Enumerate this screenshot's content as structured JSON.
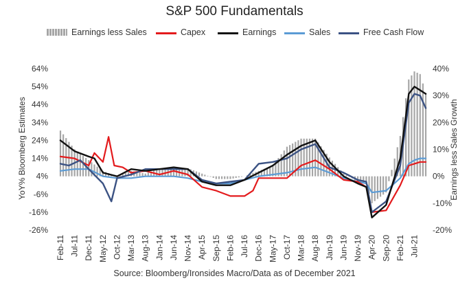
{
  "chart_data": {
    "type": "line",
    "title": "S&P 500 Fundamentals",
    "source": "Source: Bloomberg/Ironsides Macro/Data as of December 2021",
    "ylabel": "YoY% Bloomberg Estimates",
    "y2label": "Earnings less Sales Growth",
    "ylim": [
      -26,
      64
    ],
    "y2lim": [
      -20,
      40
    ],
    "yticks": [
      "64%",
      "54%",
      "44%",
      "34%",
      "24%",
      "14%",
      "4%",
      "-6%",
      "-16%",
      "-26%"
    ],
    "y2ticks": [
      "40%",
      "30%",
      "20%",
      "10%",
      "0%",
      "-10%",
      "-20%"
    ],
    "x_start": "2011-02",
    "x_end": "2021-11",
    "xticks": [
      "Feb-11",
      "Jul-11",
      "Dec-11",
      "May-12",
      "Oct-12",
      "Mar-13",
      "Aug-13",
      "Jan-14",
      "Jun-14",
      "Nov-14",
      "Apr-15",
      "Sep-15",
      "Feb-16",
      "Jul-16",
      "Dec-16",
      "May-17",
      "Oct-17",
      "Mar-18",
      "Aug-18",
      "Jan-19",
      "Jun-19",
      "Nov-19",
      "Apr-20",
      "Sep-20",
      "Feb-21",
      "Jul-21"
    ],
    "legend": [
      {
        "name": "Earnings less Sales",
        "color": "#a6a6a6",
        "kind": "bar"
      },
      {
        "name": "Capex",
        "color": "#e31a1c",
        "kind": "line"
      },
      {
        "name": "Earnings",
        "color": "#111111",
        "kind": "line"
      },
      {
        "name": "Sales",
        "color": "#5b9bd5",
        "kind": "line"
      },
      {
        "name": "Free Cash Flow",
        "color": "#3b5283",
        "kind": "line"
      }
    ],
    "bar_series": {
      "name": "Earnings less Sales",
      "axis": "right",
      "color": "#a6a6a6",
      "points": [
        [
          "2011-02",
          17
        ],
        [
          "2011-07",
          10
        ],
        [
          "2011-12",
          6
        ],
        [
          "2012-05",
          2
        ],
        [
          "2012-10",
          0
        ],
        [
          "2013-03",
          2
        ],
        [
          "2013-08",
          1
        ],
        [
          "2014-01",
          3
        ],
        [
          "2014-06",
          3
        ],
        [
          "2014-11",
          3
        ],
        [
          "2015-04",
          1
        ],
        [
          "2015-09",
          -1
        ],
        [
          "2016-02",
          -1
        ],
        [
          "2016-07",
          0
        ],
        [
          "2016-12",
          2
        ],
        [
          "2017-05",
          4
        ],
        [
          "2017-10",
          11
        ],
        [
          "2018-03",
          14
        ],
        [
          "2018-08",
          14
        ],
        [
          "2019-01",
          7
        ],
        [
          "2019-06",
          1
        ],
        [
          "2019-11",
          -2
        ],
        [
          "2020-02",
          -3
        ],
        [
          "2020-04",
          -10
        ],
        [
          "2020-09",
          -6
        ],
        [
          "2021-02",
          15
        ],
        [
          "2021-05",
          36
        ],
        [
          "2021-07",
          39
        ],
        [
          "2021-09",
          38
        ],
        [
          "2021-11",
          31
        ]
      ]
    },
    "series": [
      {
        "name": "Sales",
        "color": "#5b9bd5",
        "width": 2.2,
        "points": [
          [
            "2011-02",
            7
          ],
          [
            "2011-07",
            8
          ],
          [
            "2011-12",
            8
          ],
          [
            "2012-05",
            4
          ],
          [
            "2012-10",
            3
          ],
          [
            "2013-03",
            3
          ],
          [
            "2013-08",
            4
          ],
          [
            "2014-01",
            4
          ],
          [
            "2014-06",
            4
          ],
          [
            "2014-11",
            3
          ],
          [
            "2015-04",
            1
          ],
          [
            "2015-09",
            0
          ],
          [
            "2016-02",
            0
          ],
          [
            "2016-07",
            2
          ],
          [
            "2016-12",
            4
          ],
          [
            "2017-05",
            5
          ],
          [
            "2017-10",
            6
          ],
          [
            "2018-03",
            8
          ],
          [
            "2018-08",
            9
          ],
          [
            "2019-01",
            6
          ],
          [
            "2019-06",
            3
          ],
          [
            "2019-11",
            1
          ],
          [
            "2020-02",
            0
          ],
          [
            "2020-04",
            -5
          ],
          [
            "2020-09",
            -4
          ],
          [
            "2021-02",
            3
          ],
          [
            "2021-05",
            11
          ],
          [
            "2021-07",
            13
          ],
          [
            "2021-09",
            14
          ],
          [
            "2021-11",
            14
          ]
        ]
      },
      {
        "name": "Capex",
        "color": "#e31a1c",
        "width": 2.2,
        "points": [
          [
            "2011-02",
            15
          ],
          [
            "2011-07",
            14
          ],
          [
            "2011-12",
            10
          ],
          [
            "2012-02",
            17
          ],
          [
            "2012-05",
            12
          ],
          [
            "2012-07",
            26
          ],
          [
            "2012-09",
            10
          ],
          [
            "2012-12",
            9
          ],
          [
            "2013-03",
            6
          ],
          [
            "2013-08",
            7
          ],
          [
            "2014-01",
            5
          ],
          [
            "2014-06",
            7
          ],
          [
            "2014-11",
            5
          ],
          [
            "2015-04",
            -2
          ],
          [
            "2015-09",
            -4
          ],
          [
            "2016-02",
            -7
          ],
          [
            "2016-07",
            -7
          ],
          [
            "2016-10",
            -4
          ],
          [
            "2016-12",
            3
          ],
          [
            "2017-05",
            3
          ],
          [
            "2017-10",
            3
          ],
          [
            "2018-03",
            10
          ],
          [
            "2018-08",
            13
          ],
          [
            "2019-01",
            8
          ],
          [
            "2019-06",
            2
          ],
          [
            "2019-11",
            1
          ],
          [
            "2020-02",
            -2
          ],
          [
            "2020-04",
            -16
          ],
          [
            "2020-09",
            -15
          ],
          [
            "2021-02",
            -1
          ],
          [
            "2021-05",
            10
          ],
          [
            "2021-07",
            11
          ],
          [
            "2021-09",
            12
          ],
          [
            "2021-11",
            12
          ]
        ]
      },
      {
        "name": "Free Cash Flow",
        "color": "#3b5283",
        "width": 2.4,
        "points": [
          [
            "2011-02",
            11
          ],
          [
            "2011-05",
            10
          ],
          [
            "2011-09",
            13
          ],
          [
            "2011-12",
            8
          ],
          [
            "2012-05",
            0
          ],
          [
            "2012-08",
            -10
          ],
          [
            "2012-10",
            3
          ],
          [
            "2013-03",
            5
          ],
          [
            "2013-08",
            8
          ],
          [
            "2014-01",
            8
          ],
          [
            "2014-06",
            8
          ],
          [
            "2014-11",
            8
          ],
          [
            "2015-04",
            2
          ],
          [
            "2015-09",
            0
          ],
          [
            "2016-02",
            1
          ],
          [
            "2016-07",
            2
          ],
          [
            "2016-12",
            11
          ],
          [
            "2017-05",
            12
          ],
          [
            "2017-10",
            14
          ],
          [
            "2018-03",
            19
          ],
          [
            "2018-08",
            22
          ],
          [
            "2019-01",
            9
          ],
          [
            "2019-06",
            6
          ],
          [
            "2019-11",
            2
          ],
          [
            "2020-02",
            1
          ],
          [
            "2020-04",
            -16
          ],
          [
            "2020-09",
            -10
          ],
          [
            "2021-02",
            10
          ],
          [
            "2021-05",
            45
          ],
          [
            "2021-07",
            50
          ],
          [
            "2021-09",
            49
          ],
          [
            "2021-11",
            42
          ]
        ]
      },
      {
        "name": "Earnings",
        "color": "#111111",
        "width": 2.4,
        "points": [
          [
            "2011-02",
            24
          ],
          [
            "2011-07",
            18
          ],
          [
            "2011-12",
            15
          ],
          [
            "2012-02",
            14
          ],
          [
            "2012-05",
            6
          ],
          [
            "2012-10",
            4
          ],
          [
            "2013-03",
            8
          ],
          [
            "2013-08",
            7
          ],
          [
            "2014-01",
            8
          ],
          [
            "2014-06",
            9
          ],
          [
            "2014-11",
            8
          ],
          [
            "2015-04",
            1
          ],
          [
            "2015-09",
            -1
          ],
          [
            "2016-02",
            -1
          ],
          [
            "2016-07",
            2
          ],
          [
            "2016-12",
            6
          ],
          [
            "2017-05",
            10
          ],
          [
            "2017-10",
            16
          ],
          [
            "2018-03",
            21
          ],
          [
            "2018-08",
            24
          ],
          [
            "2019-01",
            12
          ],
          [
            "2019-06",
            4
          ],
          [
            "2019-11",
            0
          ],
          [
            "2020-02",
            -2
          ],
          [
            "2020-04",
            -19
          ],
          [
            "2020-09",
            -12
          ],
          [
            "2021-02",
            14
          ],
          [
            "2021-05",
            50
          ],
          [
            "2021-07",
            54
          ],
          [
            "2021-09",
            52
          ],
          [
            "2021-11",
            50
          ]
        ]
      }
    ]
  }
}
